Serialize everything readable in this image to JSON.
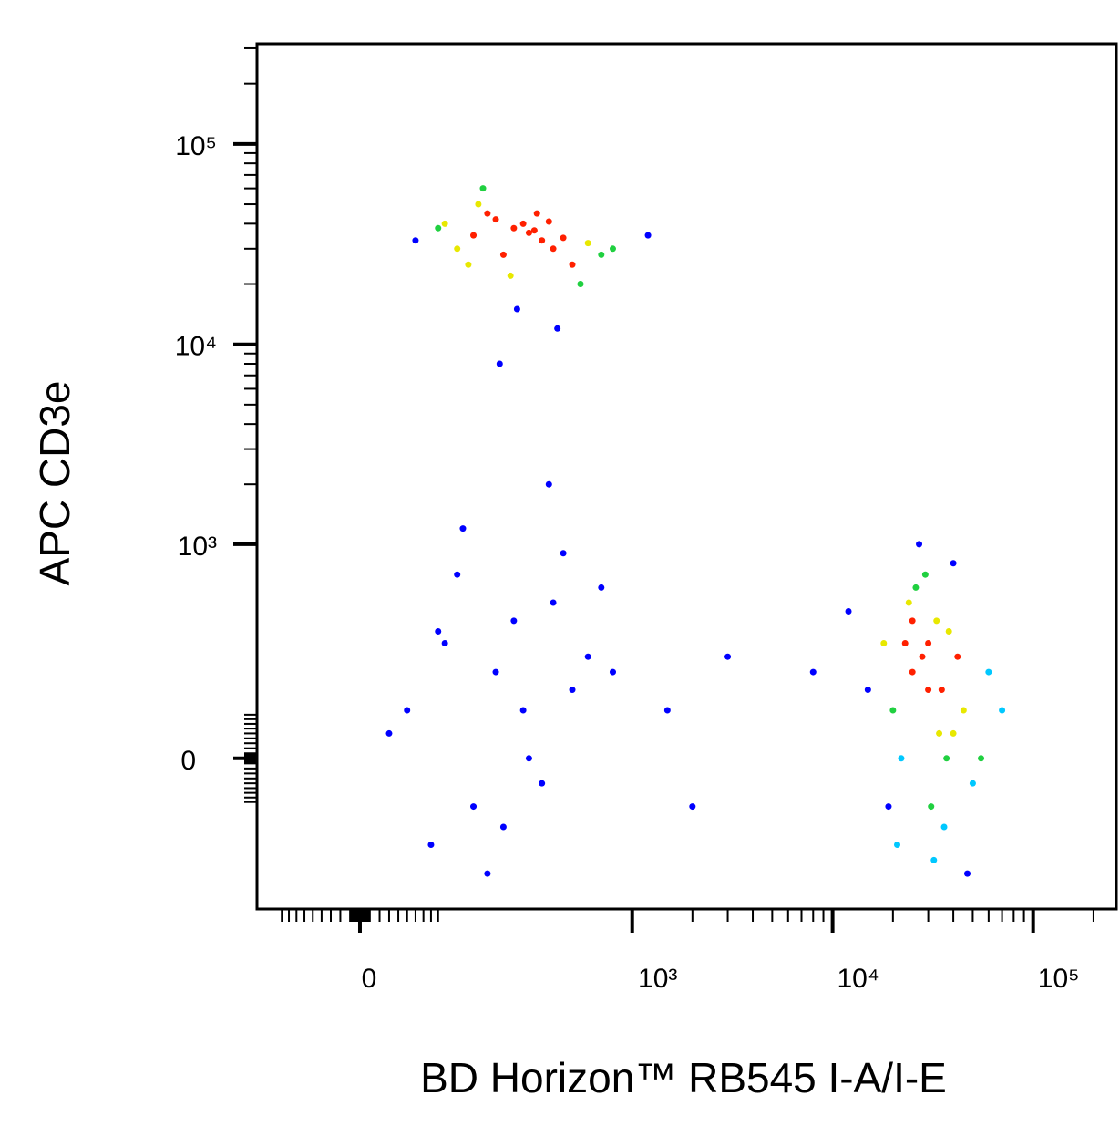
{
  "chart_data": {
    "type": "scatter",
    "x_label": "BD Horizon™ RB545 I-A/I-E",
    "y_label": "APC CD3e",
    "x": [
      100,
      150,
      200,
      250,
      300,
      350,
      400,
      180,
      220,
      280,
      320,
      500,
      600,
      700,
      120,
      90,
      160,
      240,
      380,
      450,
      550,
      800,
      1200,
      260,
      210,
      170,
      330,
      420,
      140,
      60,
      20000,
      25000,
      30000,
      35000,
      40000,
      22000,
      28000,
      33000,
      45000,
      50000,
      18000,
      15000,
      60000,
      26000,
      31000,
      38000,
      24000,
      29000,
      36000,
      42000,
      12000,
      55000,
      70000,
      27000,
      32000,
      21000,
      34000,
      40000,
      8000,
      19000,
      30000,
      47000,
      25000,
      37000,
      23000,
      50,
      100,
      150,
      200,
      300,
      400,
      500,
      80,
      120,
      250,
      350,
      600,
      700,
      30,
      180,
      280,
      450,
      90,
      220,
      800,
      1500,
      3000,
      2000,
      130,
      380
    ],
    "y": [
      40000,
      35000,
      42000,
      38000,
      36000,
      33000,
      30000,
      45000,
      28000,
      40000,
      37000,
      25000,
      32000,
      28000,
      30000,
      38000,
      50000,
      22000,
      41000,
      34000,
      20000,
      30000,
      35000,
      15000,
      8000,
      60000,
      45000,
      12000,
      25000,
      33000,
      100,
      200,
      300,
      150,
      50,
      0,
      250,
      400,
      100,
      -50,
      300,
      150,
      200,
      600,
      -100,
      350,
      500,
      700,
      -150,
      250,
      450,
      0,
      100,
      1000,
      -250,
      -200,
      50,
      800,
      200,
      -100,
      150,
      -300,
      400,
      0,
      300,
      100,
      300,
      -100,
      200,
      0,
      500,
      150,
      -200,
      700,
      400,
      -50,
      250,
      600,
      50,
      -300,
      100,
      900,
      350,
      -150,
      200,
      100,
      250,
      -100,
      1200,
      2000
    ],
    "color": "#0000ff",
    "scale": "biexponential",
    "xlim": [
      -130,
      260000
    ],
    "ylim": [
      -470,
      316000
    ],
    "xticks": [
      0,
      {
        "value": 1000,
        "label": "10³"
      },
      {
        "value": 10000,
        "label": "10⁴"
      },
      {
        "value": 100000,
        "label": "10⁵"
      }
    ],
    "yticks": [
      0,
      {
        "value": 1000,
        "label": "10³"
      },
      {
        "value": 10000,
        "label": "10⁴"
      },
      {
        "value": 100000,
        "label": "10⁵"
      }
    ]
  }
}
